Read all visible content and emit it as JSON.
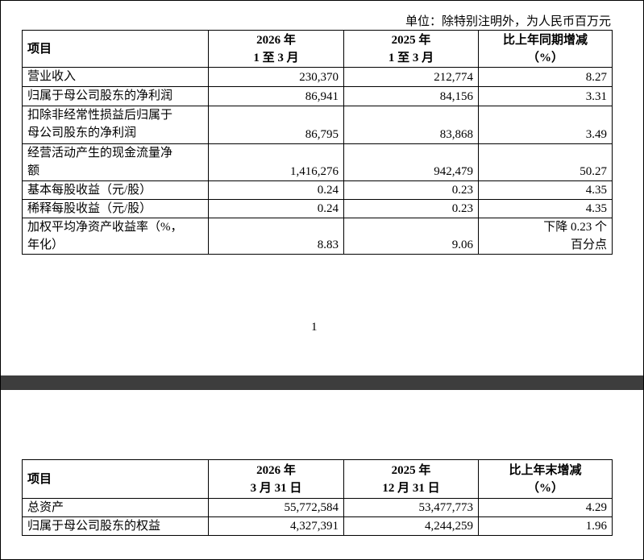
{
  "unit_note": "单位：除特别注明外，为人民币百万元",
  "table1": {
    "header": [
      [
        "项目"
      ],
      [
        "2026 年",
        "1 至 3 月"
      ],
      [
        "2025 年",
        "1 至 3 月"
      ],
      [
        "比上年同期增减",
        "（%）"
      ]
    ],
    "rows": [
      [
        [
          "营业收入"
        ],
        [
          "230,370"
        ],
        [
          "212,774"
        ],
        [
          "8.27"
        ]
      ],
      [
        [
          "归属于母公司股东的净利润"
        ],
        [
          "86,941"
        ],
        [
          "84,156"
        ],
        [
          "3.31"
        ]
      ],
      [
        [
          "扣除非经常性损益后归属于",
          "母公司股东的净利润"
        ],
        [
          "86,795"
        ],
        [
          "83,868"
        ],
        [
          "3.49"
        ]
      ],
      [
        [
          "经营活动产生的现金流量净",
          "额"
        ],
        [
          "1,416,276"
        ],
        [
          "942,479"
        ],
        [
          "50.27"
        ]
      ],
      [
        [
          "基本每股收益（元/股）"
        ],
        [
          "0.24"
        ],
        [
          "0.23"
        ],
        [
          "4.35"
        ]
      ],
      [
        [
          "稀释每股收益（元/股）"
        ],
        [
          "0.24"
        ],
        [
          "0.23"
        ],
        [
          "4.35"
        ]
      ],
      [
        [
          "加权平均净资产收益率（%，",
          "年化）"
        ],
        [
          "8.83"
        ],
        [
          "9.06"
        ],
        [
          "下降 0.23 个",
          "百分点"
        ]
      ]
    ]
  },
  "page_number": "1",
  "table2": {
    "header": [
      [
        "项目"
      ],
      [
        "2026 年",
        "3 月 31 日"
      ],
      [
        "2025 年",
        "12 月 31 日"
      ],
      [
        "比上年末增减",
        "（%）"
      ]
    ],
    "rows": [
      [
        [
          "总资产"
        ],
        [
          "55,772,584"
        ],
        [
          "53,477,773"
        ],
        [
          "4.29"
        ]
      ],
      [
        [
          "归属于母公司股东的权益"
        ],
        [
          "4,327,391"
        ],
        [
          "4,244,259"
        ],
        [
          "1.96"
        ]
      ]
    ]
  }
}
